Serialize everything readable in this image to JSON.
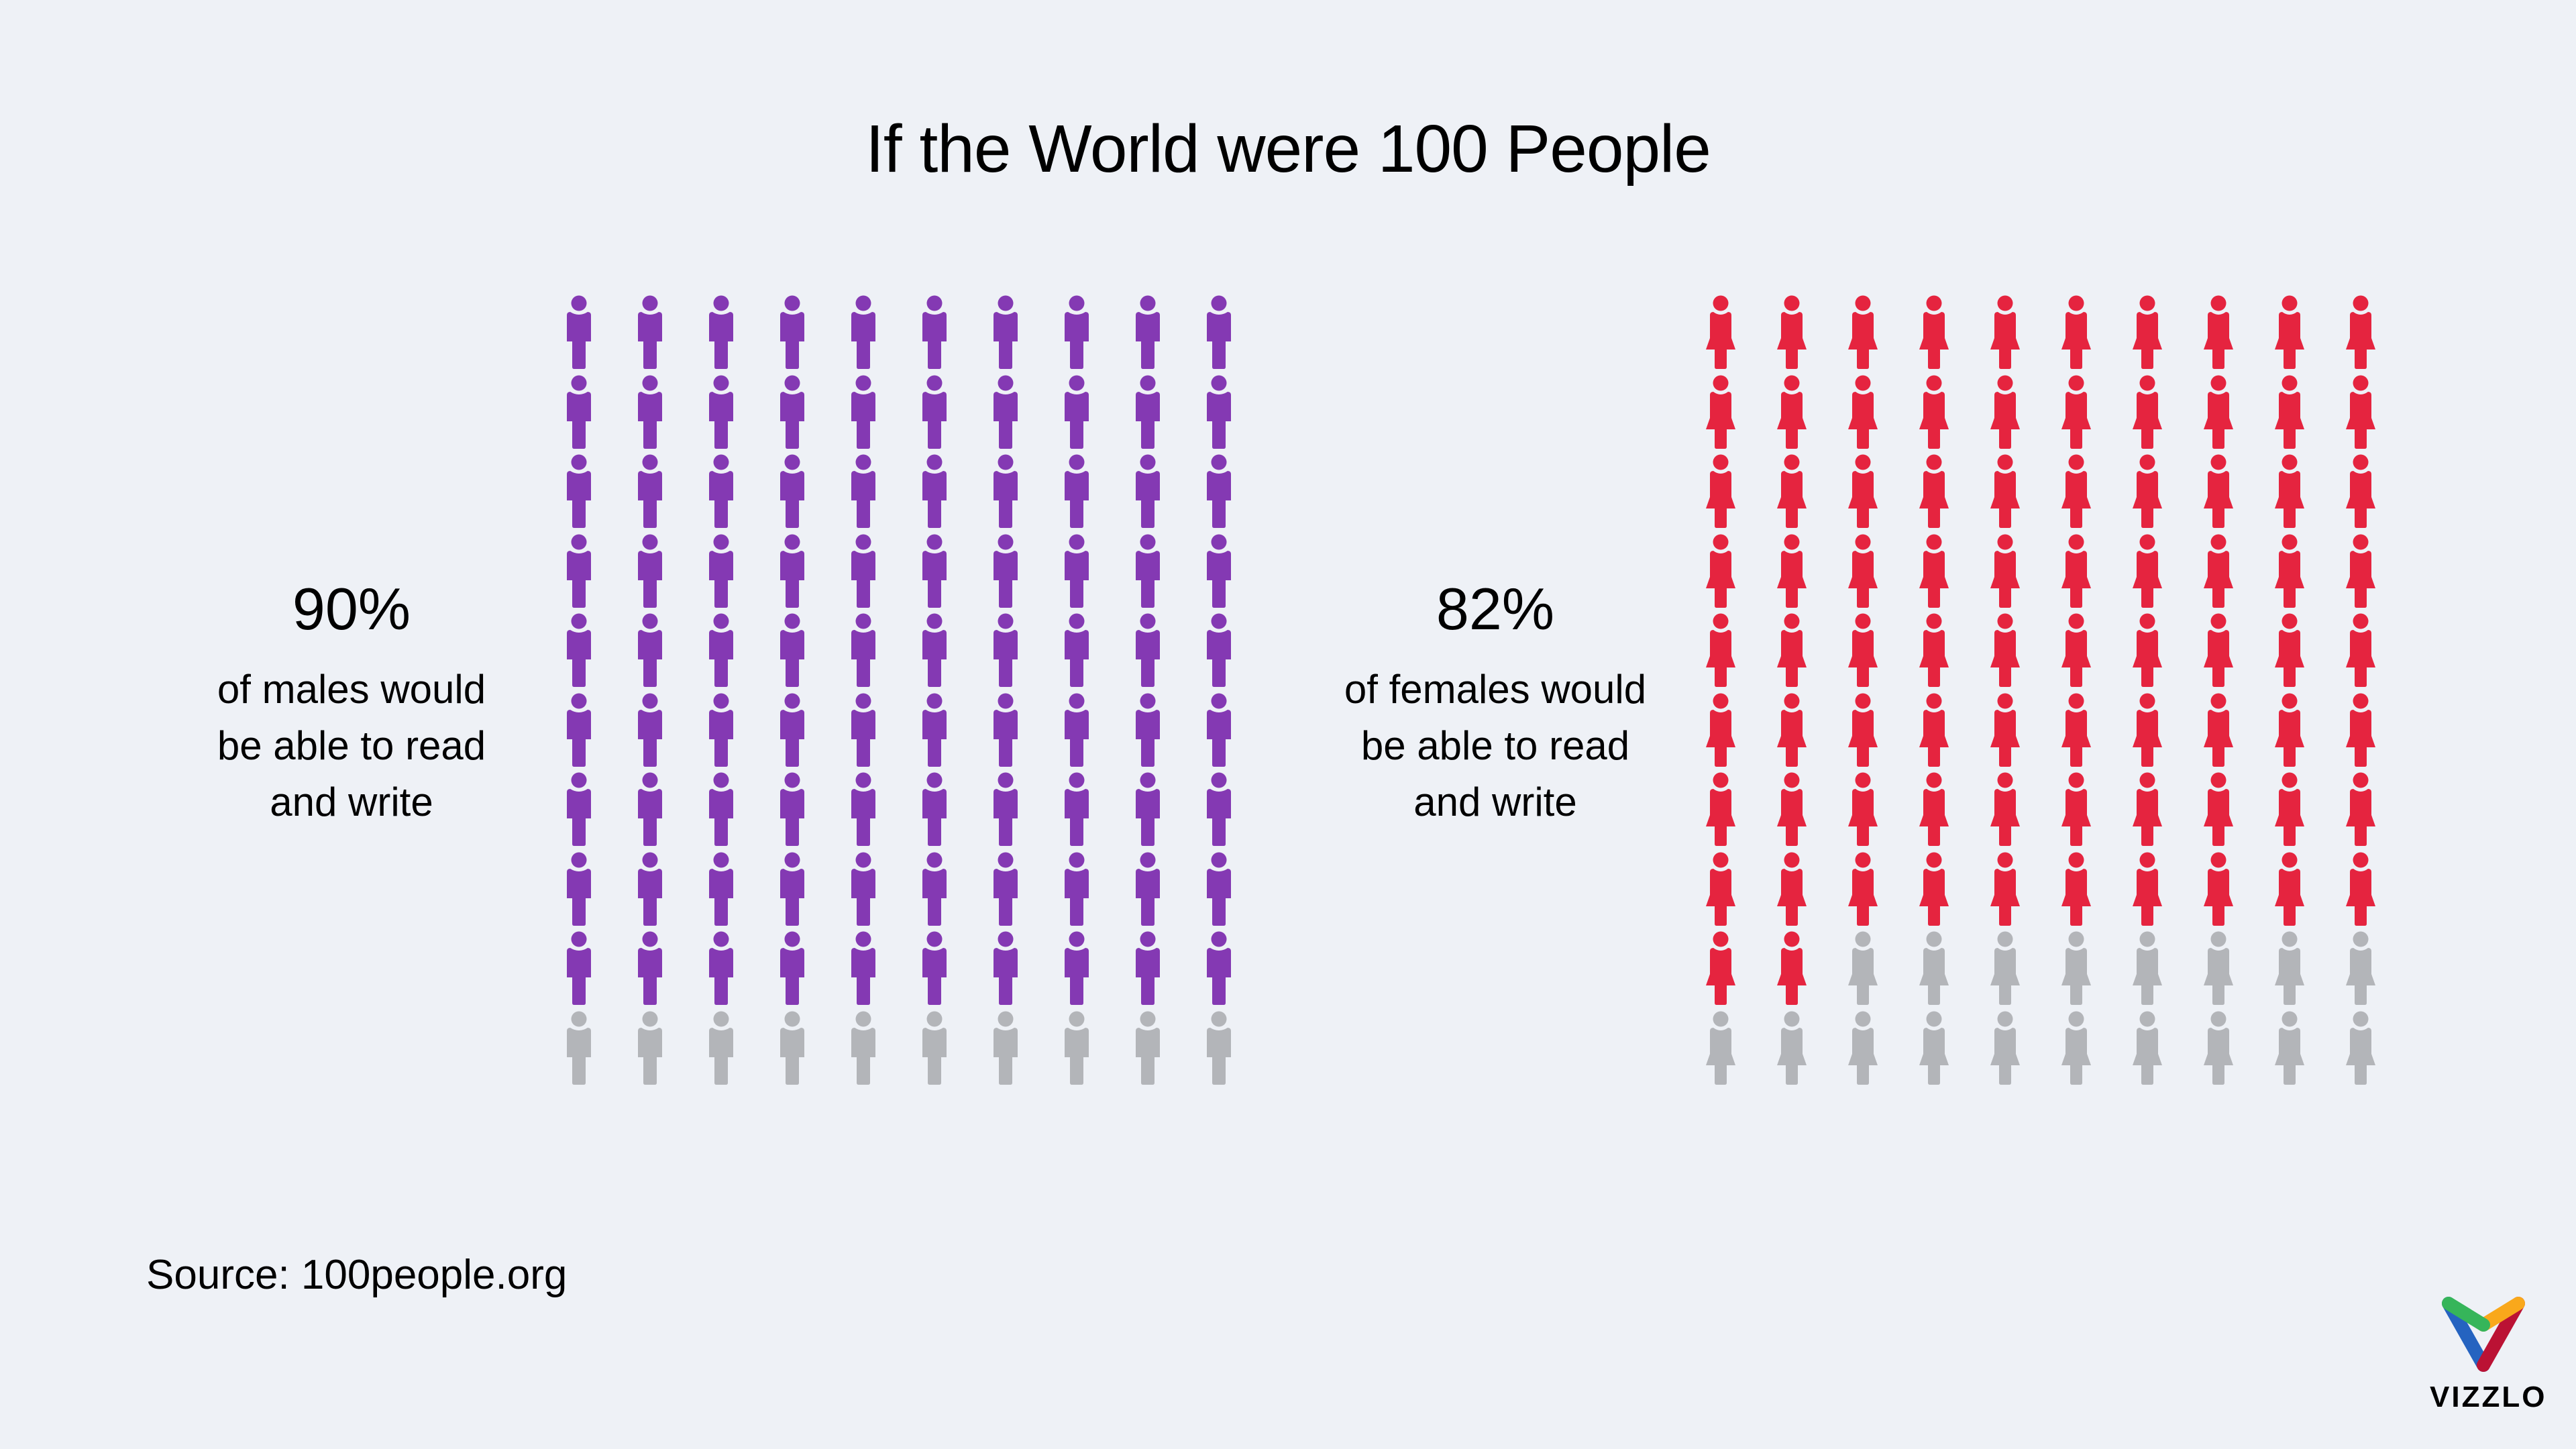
{
  "title": "If the World were 100 People",
  "colors": {
    "background": "#eef1f6",
    "male": "#8439b3",
    "female": "#e5243f",
    "inactive": "#b3b5b9",
    "text": "#000000"
  },
  "male": {
    "percent": "90%",
    "description_lines": [
      "of males would",
      "be able to read",
      "and write"
    ],
    "filled": 90,
    "total": 100
  },
  "female": {
    "percent": "82%",
    "description_lines": [
      "of females would",
      "be able to read",
      "and write"
    ],
    "filled": 82,
    "total": 100
  },
  "source": "Source: 100people.org",
  "logo": {
    "brand": "VIZZLO"
  },
  "chart_data": {
    "type": "pictogram",
    "title": "If the World were 100 People",
    "grid": {
      "rows": 10,
      "cols": 10
    },
    "series": [
      {
        "name": "Males able to read and write",
        "value": 90,
        "unit": "%",
        "color": "#8439b3",
        "icon": "male-person"
      },
      {
        "name": "Females able to read and write",
        "value": 82,
        "unit": "%",
        "color": "#e5243f",
        "icon": "female-person"
      }
    ],
    "inactive_color": "#b3b5b9",
    "source": "100people.org"
  }
}
